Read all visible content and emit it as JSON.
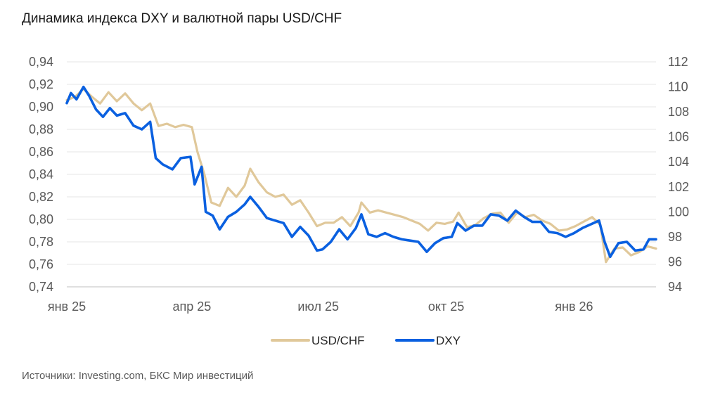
{
  "chart_data": {
    "type": "line",
    "title": "Динамика индекса DXY и валютной пары USD/CHF",
    "source": "Источники: Investing.com, БКС Мир инвестиций",
    "x_ticks": [
      "янв 25",
      "апр 25",
      "июл 25",
      "окт 25",
      "янв 26"
    ],
    "x_range": [
      "2025-01-01",
      "2026-03-01"
    ],
    "y_left": {
      "ticks": [
        "0,74",
        "0,76",
        "0,78",
        "0,80",
        "0,82",
        "0,84",
        "0,86",
        "0,88",
        "0,90",
        "0,92",
        "0,94"
      ],
      "range": [
        0.74,
        0.94
      ]
    },
    "y_right": {
      "ticks": [
        "94",
        "96",
        "98",
        "100",
        "102",
        "104",
        "106",
        "108",
        "110",
        "112"
      ],
      "range": [
        94,
        112
      ]
    },
    "grid": true,
    "legend_position": "bottom",
    "series": [
      {
        "name": "USD/CHF",
        "axis": "left",
        "color": "#e0c89a",
        "points": [
          [
            "2025-01-01",
            0.906
          ],
          [
            "2025-01-07",
            0.909
          ],
          [
            "2025-01-13",
            0.916
          ],
          [
            "2025-01-19",
            0.909
          ],
          [
            "2025-01-25",
            0.903
          ],
          [
            "2025-01-31",
            0.913
          ],
          [
            "2025-02-06",
            0.905
          ],
          [
            "2025-02-12",
            0.912
          ],
          [
            "2025-02-18",
            0.903
          ],
          [
            "2025-02-24",
            0.897
          ],
          [
            "2025-03-02",
            0.903
          ],
          [
            "2025-03-08",
            0.883
          ],
          [
            "2025-03-14",
            0.885
          ],
          [
            "2025-03-20",
            0.882
          ],
          [
            "2025-03-26",
            0.884
          ],
          [
            "2025-04-01",
            0.882
          ],
          [
            "2025-04-05",
            0.86
          ],
          [
            "2025-04-10",
            0.84
          ],
          [
            "2025-04-15",
            0.815
          ],
          [
            "2025-04-21",
            0.812
          ],
          [
            "2025-04-27",
            0.828
          ],
          [
            "2025-05-03",
            0.82
          ],
          [
            "2025-05-09",
            0.83
          ],
          [
            "2025-05-13",
            0.845
          ],
          [
            "2025-05-19",
            0.833
          ],
          [
            "2025-05-25",
            0.824
          ],
          [
            "2025-05-31",
            0.82
          ],
          [
            "2025-06-06",
            0.822
          ],
          [
            "2025-06-12",
            0.813
          ],
          [
            "2025-06-18",
            0.817
          ],
          [
            "2025-06-24",
            0.806
          ],
          [
            "2025-06-30",
            0.794
          ],
          [
            "2025-07-06",
            0.797
          ],
          [
            "2025-07-12",
            0.797
          ],
          [
            "2025-07-18",
            0.802
          ],
          [
            "2025-07-24",
            0.794
          ],
          [
            "2025-07-30",
            0.806
          ],
          [
            "2025-08-01",
            0.815
          ],
          [
            "2025-08-07",
            0.806
          ],
          [
            "2025-08-13",
            0.808
          ],
          [
            "2025-08-19",
            0.806
          ],
          [
            "2025-08-25",
            0.804
          ],
          [
            "2025-08-31",
            0.802
          ],
          [
            "2025-09-06",
            0.799
          ],
          [
            "2025-09-12",
            0.796
          ],
          [
            "2025-09-18",
            0.79
          ],
          [
            "2025-09-24",
            0.797
          ],
          [
            "2025-09-30",
            0.796
          ],
          [
            "2025-10-06",
            0.798
          ],
          [
            "2025-10-10",
            0.806
          ],
          [
            "2025-10-16",
            0.793
          ],
          [
            "2025-10-22",
            0.795
          ],
          [
            "2025-10-28",
            0.801
          ],
          [
            "2025-11-03",
            0.805
          ],
          [
            "2025-11-09",
            0.806
          ],
          [
            "2025-11-15",
            0.797
          ],
          [
            "2025-11-21",
            0.806
          ],
          [
            "2025-11-27",
            0.802
          ],
          [
            "2025-12-03",
            0.804
          ],
          [
            "2025-12-09",
            0.799
          ],
          [
            "2025-12-15",
            0.796
          ],
          [
            "2025-12-21",
            0.79
          ],
          [
            "2025-12-27",
            0.791
          ],
          [
            "2026-01-02",
            0.794
          ],
          [
            "2026-01-08",
            0.798
          ],
          [
            "2026-01-14",
            0.802
          ],
          [
            "2026-01-20",
            0.795
          ],
          [
            "2026-01-24",
            0.762
          ],
          [
            "2026-01-30",
            0.774
          ],
          [
            "2026-02-05",
            0.775
          ],
          [
            "2026-02-11",
            0.768
          ],
          [
            "2026-02-17",
            0.771
          ],
          [
            "2026-02-23",
            0.776
          ],
          [
            "2026-03-01",
            0.774
          ]
        ]
      },
      {
        "name": "DXY",
        "axis": "right",
        "color": "#0a60e0",
        "points": [
          [
            "2025-01-01",
            108.7
          ],
          [
            "2025-01-04",
            109.5
          ],
          [
            "2025-01-08",
            109.0
          ],
          [
            "2025-01-13",
            110.0
          ],
          [
            "2025-01-17",
            109.3
          ],
          [
            "2025-01-22",
            108.2
          ],
          [
            "2025-01-27",
            107.6
          ],
          [
            "2025-02-01",
            108.3
          ],
          [
            "2025-02-06",
            107.7
          ],
          [
            "2025-02-12",
            107.9
          ],
          [
            "2025-02-18",
            106.9
          ],
          [
            "2025-02-24",
            106.6
          ],
          [
            "2025-03-02",
            107.2
          ],
          [
            "2025-03-06",
            104.3
          ],
          [
            "2025-03-11",
            103.8
          ],
          [
            "2025-03-18",
            103.4
          ],
          [
            "2025-03-24",
            104.3
          ],
          [
            "2025-03-31",
            104.4
          ],
          [
            "2025-04-03",
            102.2
          ],
          [
            "2025-04-08",
            103.6
          ],
          [
            "2025-04-11",
            100.0
          ],
          [
            "2025-04-16",
            99.7
          ],
          [
            "2025-04-21",
            98.6
          ],
          [
            "2025-04-27",
            99.6
          ],
          [
            "2025-05-03",
            100.0
          ],
          [
            "2025-05-09",
            100.6
          ],
          [
            "2025-05-13",
            101.2
          ],
          [
            "2025-05-19",
            100.4
          ],
          [
            "2025-05-25",
            99.5
          ],
          [
            "2025-05-31",
            99.3
          ],
          [
            "2025-06-06",
            99.1
          ],
          [
            "2025-06-12",
            98.0
          ],
          [
            "2025-06-18",
            98.8
          ],
          [
            "2025-06-24",
            98.1
          ],
          [
            "2025-06-30",
            96.9
          ],
          [
            "2025-07-04",
            97.0
          ],
          [
            "2025-07-10",
            97.6
          ],
          [
            "2025-07-16",
            98.6
          ],
          [
            "2025-07-22",
            97.8
          ],
          [
            "2025-07-28",
            98.7
          ],
          [
            "2025-08-01",
            99.8
          ],
          [
            "2025-08-06",
            98.2
          ],
          [
            "2025-08-12",
            98.0
          ],
          [
            "2025-08-18",
            98.3
          ],
          [
            "2025-08-24",
            98.0
          ],
          [
            "2025-08-30",
            97.8
          ],
          [
            "2025-09-05",
            97.7
          ],
          [
            "2025-09-11",
            97.6
          ],
          [
            "2025-09-17",
            96.8
          ],
          [
            "2025-09-23",
            97.5
          ],
          [
            "2025-09-29",
            97.9
          ],
          [
            "2025-10-05",
            98.0
          ],
          [
            "2025-10-09",
            99.1
          ],
          [
            "2025-10-15",
            98.5
          ],
          [
            "2025-10-21",
            98.9
          ],
          [
            "2025-10-27",
            98.9
          ],
          [
            "2025-11-02",
            99.8
          ],
          [
            "2025-11-08",
            99.7
          ],
          [
            "2025-11-14",
            99.3
          ],
          [
            "2025-11-20",
            100.1
          ],
          [
            "2025-11-26",
            99.6
          ],
          [
            "2025-12-02",
            99.2
          ],
          [
            "2025-12-08",
            99.2
          ],
          [
            "2025-12-14",
            98.4
          ],
          [
            "2025-12-20",
            98.3
          ],
          [
            "2025-12-26",
            98.0
          ],
          [
            "2026-01-01",
            98.3
          ],
          [
            "2026-01-07",
            98.7
          ],
          [
            "2026-01-13",
            99.0
          ],
          [
            "2026-01-19",
            99.3
          ],
          [
            "2026-01-23",
            97.6
          ],
          [
            "2026-01-27",
            96.4
          ],
          [
            "2026-02-02",
            97.5
          ],
          [
            "2026-02-08",
            97.6
          ],
          [
            "2026-02-14",
            96.9
          ],
          [
            "2026-02-20",
            97.0
          ],
          [
            "2026-02-24",
            97.8
          ],
          [
            "2026-03-01",
            97.8
          ]
        ]
      }
    ]
  }
}
